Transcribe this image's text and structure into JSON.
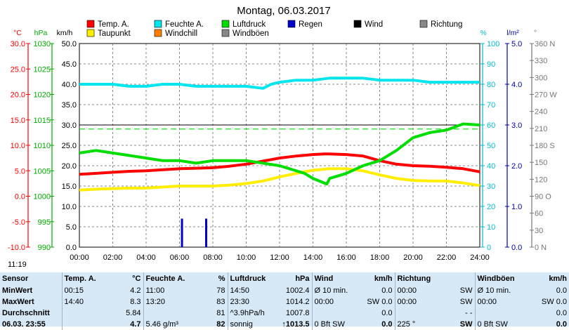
{
  "chart_data": {
    "type": "line",
    "title": "Montag, 06.03.2017",
    "x_ticks": [
      "00:00",
      "02:00",
      "04:00",
      "06:00",
      "08:00",
      "10:00",
      "12:00",
      "14:00",
      "16:00",
      "18:00",
      "20:00",
      "22:00",
      "24:00"
    ],
    "axes": {
      "temp_c": {
        "label": "°C",
        "ticks": [
          "30.0",
          "25.0",
          "20.0",
          "15.0",
          "10.0",
          "5.0",
          "0.0",
          "-5.0",
          "-10.0"
        ],
        "range": [
          -10,
          30
        ],
        "color": "#ff0000"
      },
      "pressure_hpa": {
        "label": "hPa",
        "ticks": [
          "1030",
          "1025",
          "1020",
          "1015",
          "1010",
          "1005",
          "1000",
          "995",
          "990"
        ],
        "range": [
          990,
          1030
        ],
        "color": "#00aa00"
      },
      "wind_kmh": {
        "label": "km/h",
        "ticks": [
          "50.0",
          "45.0",
          "40.0",
          "35.0",
          "30.0",
          "25.0",
          "20.0",
          "15.0",
          "10.0",
          "5.0",
          "0.0"
        ],
        "range": [
          0,
          50
        ],
        "color": "#000000"
      },
      "humidity_pct": {
        "label": "%",
        "ticks": [
          "100",
          "90",
          "80",
          "70",
          "60",
          "50",
          "40",
          "30",
          "20",
          "10",
          "0"
        ],
        "range": [
          0,
          100
        ],
        "color": "#00bcd4"
      },
      "rain_lm2": {
        "label": "l/m²",
        "ticks": [
          "5.0",
          "4.0",
          "3.0",
          "2.0",
          "1.0",
          "0.0"
        ],
        "range": [
          0,
          5
        ],
        "color": "#0000aa"
      },
      "direction": {
        "label": "°",
        "ticks": [
          "360 N",
          "330",
          "300",
          "270 W",
          "240",
          "210",
          "180 S",
          "150",
          "120",
          "90 O",
          "60",
          "30",
          "0 N"
        ],
        "range": [
          0,
          360
        ],
        "color": "#777777"
      }
    },
    "legend": [
      {
        "name": "Temp. A.",
        "color": "#ff0000"
      },
      {
        "name": "Feuchte A.",
        "color": "#00e5ee"
      },
      {
        "name": "Luftdruck",
        "color": "#00dd00"
      },
      {
        "name": "Regen",
        "color": "#0000cc"
      },
      {
        "name": "Wind",
        "color": "#000000"
      },
      {
        "name": "Richtung",
        "color": "#888888"
      },
      {
        "name": "Taupunkt",
        "color": "#ffee00"
      },
      {
        "name": "Windchill",
        "color": "#ff7f00"
      },
      {
        "name": "Windböen",
        "color": "#888888"
      }
    ],
    "series": [
      {
        "name": "Temp. A.",
        "axis": "temp_c",
        "color": "#ff0000",
        "x": [
          0,
          1,
          2,
          3,
          4,
          5,
          6,
          7,
          8,
          9,
          10,
          11,
          12,
          13,
          14,
          14.67,
          15,
          16,
          17,
          18,
          19,
          20,
          21,
          22,
          23,
          24
        ],
        "values": [
          4.3,
          4.5,
          4.7,
          4.9,
          5.0,
          5.2,
          5.4,
          5.5,
          5.6,
          5.9,
          6.3,
          6.9,
          7.5,
          7.9,
          8.2,
          8.3,
          8.3,
          8.2,
          7.9,
          7.0,
          6.3,
          6.0,
          5.9,
          5.7,
          5.4,
          4.8
        ]
      },
      {
        "name": "Taupunkt",
        "axis": "temp_c",
        "color": "#ffee00",
        "x": [
          0,
          1,
          2,
          3,
          4,
          5,
          6,
          7,
          8,
          9,
          10,
          11,
          12,
          13,
          14,
          15,
          16,
          17,
          18,
          19,
          20,
          21,
          22,
          23,
          24
        ],
        "values": [
          1.2,
          1.4,
          1.5,
          1.6,
          1.6,
          1.8,
          2.0,
          2.0,
          2.0,
          2.2,
          2.5,
          3.0,
          3.8,
          4.5,
          5.1,
          5.4,
          5.4,
          5.0,
          4.2,
          3.5,
          3.1,
          3.0,
          3.0,
          2.6,
          2.1
        ]
      },
      {
        "name": "Feuchte A.",
        "axis": "humidity_pct",
        "color": "#00e5ee",
        "x": [
          0,
          1,
          2,
          3,
          4,
          5,
          6,
          7,
          8,
          9,
          10,
          11,
          11.5,
          12,
          13,
          14,
          15,
          16,
          17,
          18,
          19,
          20,
          21,
          22,
          23,
          24
        ],
        "values": [
          80,
          80,
          80,
          79,
          79,
          80,
          80,
          79,
          79,
          79,
          79,
          78,
          80,
          81,
          82,
          82,
          83,
          83,
          83,
          82,
          82,
          82,
          81,
          81,
          81,
          81
        ]
      },
      {
        "name": "Luftdruck",
        "axis": "pressure_hpa",
        "color": "#00dd00",
        "x": [
          0,
          1,
          2,
          3,
          4,
          5,
          6,
          7,
          8,
          9,
          10,
          11,
          12,
          13,
          13.5,
          14,
          14.83,
          15,
          16,
          17,
          18,
          19,
          20,
          21,
          22,
          23,
          24
        ],
        "values": [
          1008.5,
          1009,
          1008.5,
          1008,
          1007.5,
          1007,
          1007,
          1006.5,
          1007,
          1007,
          1007,
          1006.5,
          1006,
          1005,
          1004.5,
          1003.5,
          1002.4,
          1003.5,
          1004.5,
          1006,
          1007,
          1009,
          1011.5,
          1012.5,
          1013,
          1014.2,
          1014
        ]
      },
      {
        "name": "Regen",
        "axis": "rain_lm2",
        "color": "#0000cc",
        "type": "bar",
        "x": [
          6.15,
          7.6
        ],
        "values": [
          0.7,
          0.7
        ]
      }
    ],
    "reference_lines": [
      {
        "axis": "humidity_pct",
        "value": 58,
        "color": "#00dd00",
        "style": "dashed"
      }
    ]
  },
  "status": {
    "time": "11:19"
  },
  "stats": {
    "headers": [
      "Sensor",
      "Temp. A.",
      "°C",
      "Feuchte A.",
      "%",
      "Luftdruck",
      "hPa",
      "Wind",
      "km/h",
      "Richtung",
      "",
      "Windböen",
      "km/h"
    ],
    "rows": [
      {
        "label": "MinWert",
        "cells": [
          "00:15",
          "4.2",
          "11:00",
          "78",
          "14:50",
          "1002.4",
          "Ø 10 min.",
          "0.0",
          "00:00",
          "SW",
          "Ø 10 min.",
          "0.0"
        ]
      },
      {
        "label": "MaxWert",
        "cells": [
          "14:40",
          "8.3",
          "13:20",
          "83",
          "23:30",
          "1014.2",
          "00:00",
          "SW 0.0",
          "00:00",
          "SW",
          "00:00",
          "SW 0.0"
        ]
      },
      {
        "label": "Durchschnitt",
        "cells": [
          "",
          "5.84",
          "",
          "81",
          "^3.9hPa/h",
          "1007.8",
          "",
          "0.0",
          "",
          "- -",
          "",
          "0.0"
        ]
      },
      {
        "label": "06.03. 23:55",
        "cells": [
          "",
          "4.7",
          "5.46 g/m³",
          "82",
          "sonnig",
          "↑1013.5",
          "0 Bft SW",
          "0.0",
          "225 °",
          "SW",
          "0 Bft SW",
          "0.0"
        ]
      }
    ]
  }
}
